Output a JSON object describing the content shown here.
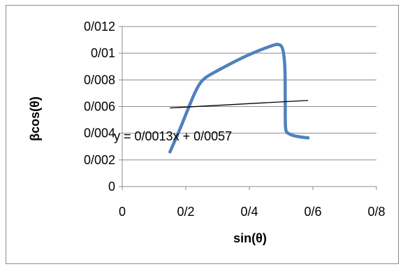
{
  "chart_data": {
    "type": "line",
    "xlabel": "sin(θ)",
    "ylabel": "βcos(θ)",
    "xlim": [
      0,
      0.8
    ],
    "ylim": [
      0,
      0.012
    ],
    "x_ticks": [
      0,
      0.2,
      0.4,
      0.6,
      0.8
    ],
    "y_ticks": [
      0,
      0.002,
      0.004,
      0.006,
      0.008,
      0.01,
      0.012
    ],
    "x_tick_labels": [
      "0",
      "0/2",
      "0/4",
      "0/6",
      "0/8"
    ],
    "y_tick_labels": [
      "0",
      "0/002",
      "0/004",
      "0/006",
      "0/008",
      "0/01",
      "0/012"
    ],
    "grid": "horizontal",
    "series": [
      {
        "color": "#4f81bd",
        "x": [
          0.15,
          0.18,
          0.21,
          0.235,
          0.255,
          0.3,
          0.38,
          0.44,
          0.475,
          0.49,
          0.505,
          0.512,
          0.513,
          0.513,
          0.515,
          0.525,
          0.54,
          0.565,
          0.585
        ],
        "y": [
          0.0026,
          0.0042,
          0.006,
          0.0074,
          0.0081,
          0.0087,
          0.0097,
          0.0103,
          0.0106,
          0.0107,
          0.0105,
          0.0092,
          0.007,
          0.0047,
          0.0041,
          0.00395,
          0.0038,
          0.0037,
          0.00365
        ]
      }
    ],
    "trendline": {
      "color": "#000000",
      "slope": 0.0013,
      "intercept": 0.0057,
      "x_range": [
        0.15,
        0.585
      ],
      "equation": "y = 0/0013x + 0/0057"
    }
  }
}
